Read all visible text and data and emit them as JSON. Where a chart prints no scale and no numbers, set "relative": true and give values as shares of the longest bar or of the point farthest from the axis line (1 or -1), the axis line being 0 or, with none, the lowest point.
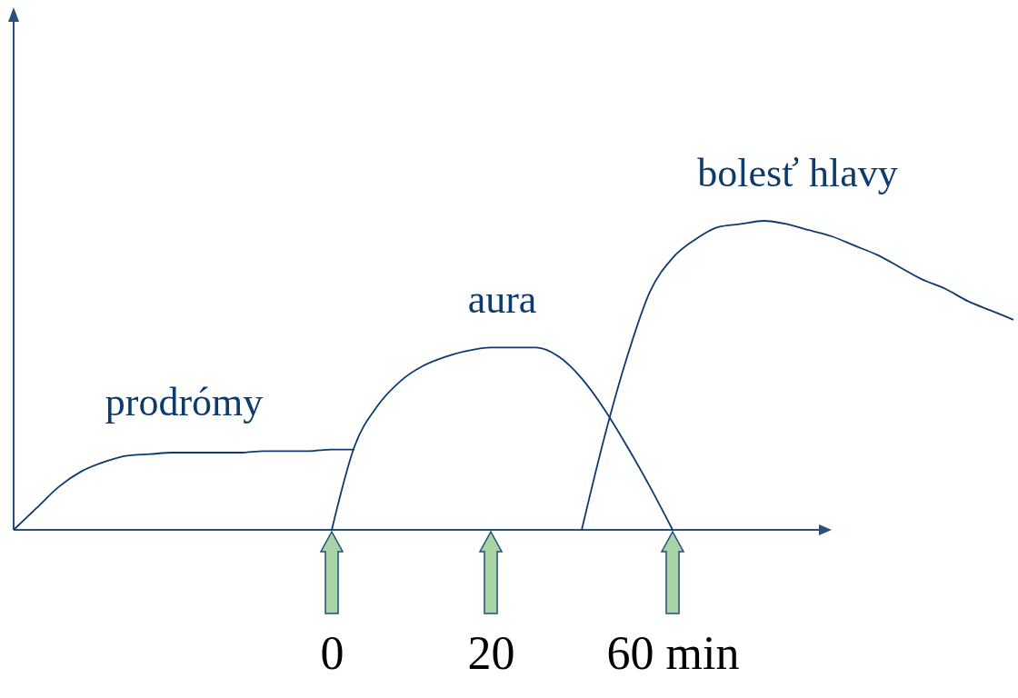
{
  "chart_data": {
    "type": "line",
    "relative": true,
    "legend": false,
    "marker": "none",
    "line_style": "solid",
    "categories": [
      null,
      null,
      null,
      null,
      null,
      null,
      null,
      null,
      null,
      null,
      null,
      null,
      null,
      null,
      "0",
      null,
      null,
      null,
      null,
      null,
      null,
      "20",
      null,
      null,
      null,
      null,
      null,
      null,
      null,
      "60 min",
      null,
      null,
      null,
      null,
      null,
      null,
      null,
      null,
      null,
      null,
      null,
      null,
      null,
      null,
      null
    ],
    "series": [
      {
        "name": "prodrómy",
        "color": "#0d3b6e",
        "values": [
          0,
          0.07,
          0.14,
          0.19,
          0.22,
          0.24,
          0.245,
          0.25,
          0.25,
          0.25,
          0.25,
          0.255,
          0.255,
          0.255,
          0.26,
          0.26,
          null,
          null,
          null,
          null,
          null,
          null,
          null,
          null,
          null,
          null,
          null,
          null,
          null,
          null,
          null,
          null,
          null,
          null,
          null,
          null,
          null,
          null,
          null,
          null,
          null,
          null,
          null,
          null,
          null
        ]
      },
      {
        "name": "aura",
        "color": "#0d3b6e",
        "values": [
          null,
          null,
          null,
          null,
          null,
          null,
          null,
          null,
          null,
          null,
          null,
          null,
          null,
          null,
          0,
          0.27,
          0.4,
          0.48,
          0.53,
          0.56,
          0.58,
          0.59,
          0.59,
          0.59,
          0.56,
          0.49,
          0.39,
          0.27,
          0.14,
          0,
          null,
          null,
          null,
          null,
          null,
          null,
          null,
          null,
          null,
          null,
          null,
          null,
          null,
          null,
          null
        ]
      },
      {
        "name": "bolesť hlavy",
        "color": "#0d3b6e",
        "values": [
          null,
          null,
          null,
          null,
          null,
          null,
          null,
          null,
          null,
          null,
          null,
          null,
          null,
          null,
          null,
          null,
          null,
          null,
          null,
          null,
          null,
          null,
          null,
          null,
          null,
          0,
          0.3,
          0.56,
          0.77,
          0.88,
          0.94,
          0.98,
          0.99,
          1,
          0.99,
          0.97,
          0.95,
          0.92,
          0.89,
          0.85,
          0.81,
          0.78,
          0.74,
          0.71,
          0.68
        ]
      }
    ]
  }
}
